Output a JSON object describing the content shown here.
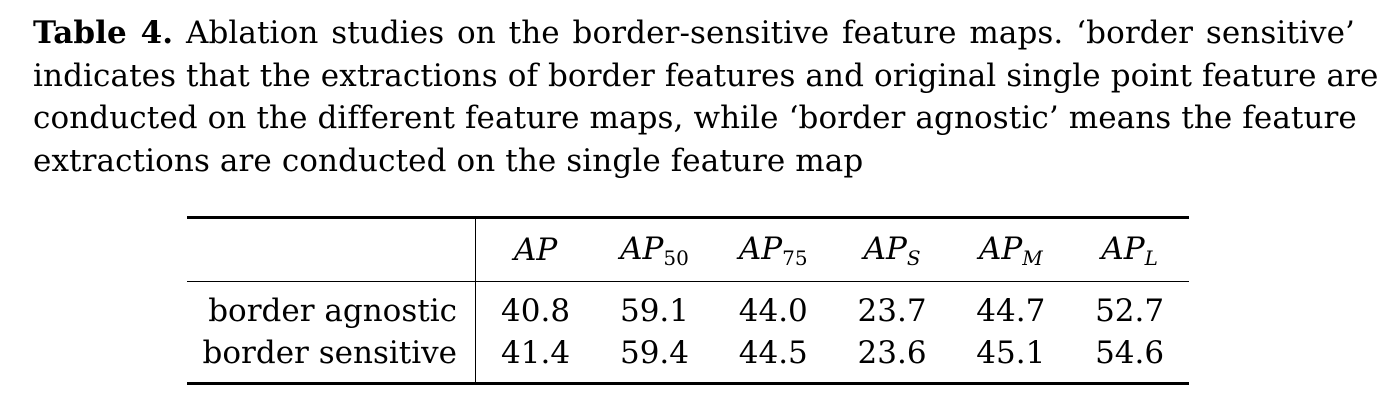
{
  "caption": {
    "label": "Table 4.",
    "lines": [
      "Ablation studies on the border-sensitive feature maps. ‘border sensitive’",
      "indicates that the extractions of border features and original single point feature are",
      "conducted on the different feature maps, while ‘border agnostic’ means the feature",
      "extractions are conducted on the single feature map"
    ]
  },
  "table": {
    "columns": [
      {
        "base": "AP",
        "sub": ""
      },
      {
        "base": "AP",
        "sub": "50"
      },
      {
        "base": "AP",
        "sub": "75"
      },
      {
        "base": "AP",
        "sub": "S"
      },
      {
        "base": "AP",
        "sub": "M"
      },
      {
        "base": "AP",
        "sub": "L"
      }
    ],
    "rows": [
      {
        "label": "border agnostic",
        "values": [
          "40.8",
          "59.1",
          "44.0",
          "23.7",
          "44.7",
          "52.7"
        ]
      },
      {
        "label": "border sensitive",
        "values": [
          "41.4",
          "59.4",
          "44.5",
          "23.6",
          "45.1",
          "54.6"
        ]
      }
    ]
  }
}
